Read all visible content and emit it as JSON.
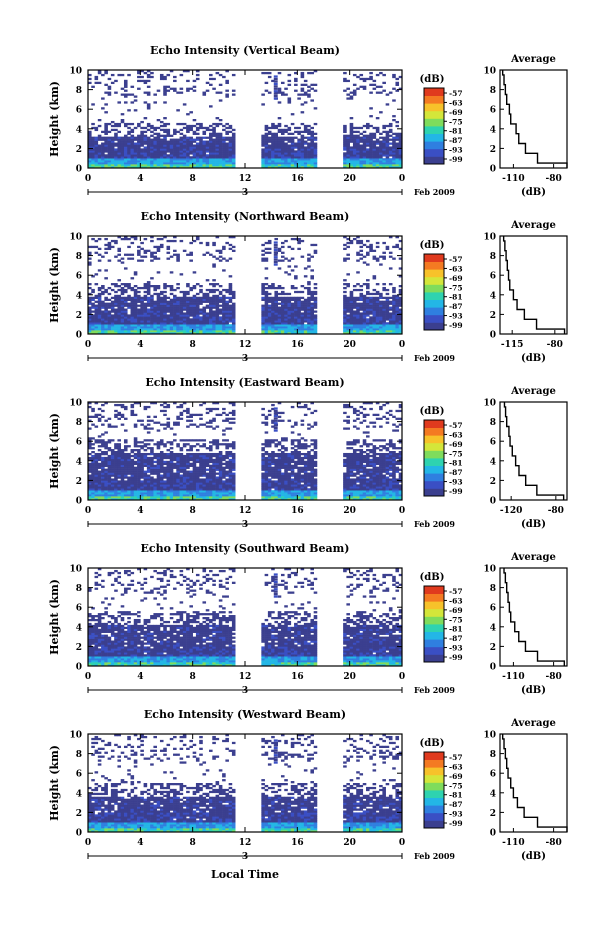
{
  "chart_data": [
    {
      "type": "heatmap",
      "title": "Echo Intensity (Vertical Beam)",
      "ylabel": "Height (km)",
      "xlabel": "",
      "x_ticks": [
        "0",
        "4",
        "8",
        "12",
        "16",
        "20",
        "0"
      ],
      "y_ticks": [
        "0",
        "2",
        "4",
        "6",
        "8",
        "10"
      ],
      "xlim": [
        0,
        24
      ],
      "ylim": [
        0,
        10
      ],
      "date_label": "3",
      "date_suffix": "Feb 2009",
      "colorbar": {
        "unit": "(dB)",
        "ticks": [
          "-57",
          "-63",
          "-69",
          "-75",
          "-81",
          "-87",
          "-93",
          "-99"
        ]
      },
      "data_gaps_hours": [
        [
          11.3,
          13.3
        ],
        [
          17.5,
          19.5
        ]
      ],
      "echo_top_km": 3.2,
      "average": {
        "title": "Average",
        "xlabel": "(dB)",
        "x_ticks": [
          "-110",
          "-80"
        ],
        "xlim": [
          -120,
          -70
        ],
        "y_ticks": [
          "0",
          "2",
          "4",
          "6",
          "8",
          "10"
        ],
        "profile_db": [
          -70,
          -92,
          -101,
          -106,
          -108,
          -112,
          -113,
          -115,
          -116,
          -117,
          -118
        ]
      }
    },
    {
      "type": "heatmap",
      "title": "Echo Intensity (Northward Beam)",
      "ylabel": "Height (km)",
      "xlabel": "",
      "x_ticks": [
        "0",
        "4",
        "8",
        "12",
        "16",
        "20",
        "0"
      ],
      "y_ticks": [
        "0",
        "2",
        "4",
        "6",
        "8",
        "10"
      ],
      "xlim": [
        0,
        24
      ],
      "ylim": [
        0,
        10
      ],
      "date_label": "3",
      "date_suffix": "Feb 2009",
      "colorbar": {
        "unit": "(dB)",
        "ticks": [
          "-57",
          "-63",
          "-69",
          "-75",
          "-81",
          "-87",
          "-93",
          "-99"
        ]
      },
      "data_gaps_hours": [
        [
          11.3,
          13.3
        ],
        [
          17.5,
          19.5
        ]
      ],
      "echo_top_km": 3.8,
      "average": {
        "title": "Average",
        "xlabel": "(dB)",
        "x_ticks": [
          "-115",
          "-80"
        ],
        "xlim": [
          -125,
          -70
        ],
        "y_ticks": [
          "0",
          "2",
          "4",
          "6",
          "8",
          "10"
        ],
        "profile_db": [
          -72,
          -95,
          -105,
          -111,
          -114,
          -117,
          -118,
          -119,
          -120,
          -121,
          -122
        ]
      }
    },
    {
      "type": "heatmap",
      "title": "Echo Intensity (Eastward Beam)",
      "ylabel": "Height (km)",
      "xlabel": "",
      "x_ticks": [
        "0",
        "4",
        "8",
        "12",
        "16",
        "20",
        "0"
      ],
      "y_ticks": [
        "0",
        "2",
        "4",
        "6",
        "8",
        "10"
      ],
      "xlim": [
        0,
        24
      ],
      "ylim": [
        0,
        10
      ],
      "date_label": "3",
      "date_suffix": "Feb 2009",
      "colorbar": {
        "unit": "(dB)",
        "ticks": [
          "-57",
          "-63",
          "-69",
          "-75",
          "-81",
          "-87",
          "-93",
          "-99"
        ]
      },
      "data_gaps_hours": [
        [
          11.3,
          13.3
        ],
        [
          17.5,
          19.5
        ]
      ],
      "echo_top_km": 4.8,
      "average": {
        "title": "Average",
        "xlabel": "(dB)",
        "x_ticks": [
          "-120",
          "-80"
        ],
        "xlim": [
          -130,
          -70
        ],
        "y_ticks": [
          "0",
          "2",
          "4",
          "6",
          "8",
          "10"
        ],
        "profile_db": [
          -73,
          -97,
          -107,
          -113,
          -116,
          -119,
          -121,
          -122,
          -124,
          -125,
          -126
        ]
      }
    },
    {
      "type": "heatmap",
      "title": "Echo Intensity (Southward Beam)",
      "ylabel": "Height (km)",
      "xlabel": "",
      "x_ticks": [
        "0",
        "4",
        "8",
        "12",
        "16",
        "20",
        "0"
      ],
      "y_ticks": [
        "0",
        "2",
        "4",
        "6",
        "8",
        "10"
      ],
      "xlim": [
        0,
        24
      ],
      "ylim": [
        0,
        10
      ],
      "date_label": "3",
      "date_suffix": "Feb 2009",
      "colorbar": {
        "unit": "(dB)",
        "ticks": [
          "-57",
          "-63",
          "-69",
          "-75",
          "-81",
          "-87",
          "-93",
          "-99"
        ]
      },
      "data_gaps_hours": [
        [
          11.3,
          13.3
        ],
        [
          17.5,
          19.5
        ]
      ],
      "echo_top_km": 4.2,
      "average": {
        "title": "Average",
        "xlabel": "(dB)",
        "x_ticks": [
          "-110",
          "-80"
        ],
        "xlim": [
          -120,
          -70
        ],
        "y_ticks": [
          "0",
          "2",
          "4",
          "6",
          "8",
          "10"
        ],
        "profile_db": [
          -72,
          -92,
          -101,
          -106,
          -109,
          -112,
          -113,
          -114,
          -115,
          -116,
          -117
        ]
      }
    },
    {
      "type": "heatmap",
      "title": "Echo Intensity (Westward Beam)",
      "ylabel": "Height (km)",
      "xlabel": "Local Time",
      "x_ticks": [
        "0",
        "4",
        "8",
        "12",
        "16",
        "20",
        "0"
      ],
      "y_ticks": [
        "0",
        "2",
        "4",
        "6",
        "8",
        "10"
      ],
      "xlim": [
        0,
        24
      ],
      "ylim": [
        0,
        10
      ],
      "date_label": "3",
      "date_suffix": "Feb 2009",
      "colorbar": {
        "unit": "(dB)",
        "ticks": [
          "-57",
          "-63",
          "-69",
          "-75",
          "-81",
          "-87",
          "-93",
          "-99"
        ]
      },
      "data_gaps_hours": [
        [
          11.3,
          13.3
        ],
        [
          17.5,
          19.5
        ]
      ],
      "echo_top_km": 3.6,
      "average": {
        "title": "Average",
        "xlabel": "(dB)",
        "x_ticks": [
          "-110",
          "-80"
        ],
        "xlim": [
          -120,
          -70
        ],
        "y_ticks": [
          "0",
          "2",
          "4",
          "6",
          "8",
          "10"
        ],
        "profile_db": [
          -70,
          -92,
          -102,
          -107,
          -110,
          -112,
          -114,
          -115,
          -116,
          -117,
          -118
        ]
      }
    }
  ],
  "colormap": [
    "#3b3f8f",
    "#3a4fc4",
    "#2f7fe0",
    "#23b6e6",
    "#2ed3b0",
    "#7fdc5c",
    "#d4e63a",
    "#f7c22a",
    "#f47a22",
    "#e03a1e"
  ]
}
